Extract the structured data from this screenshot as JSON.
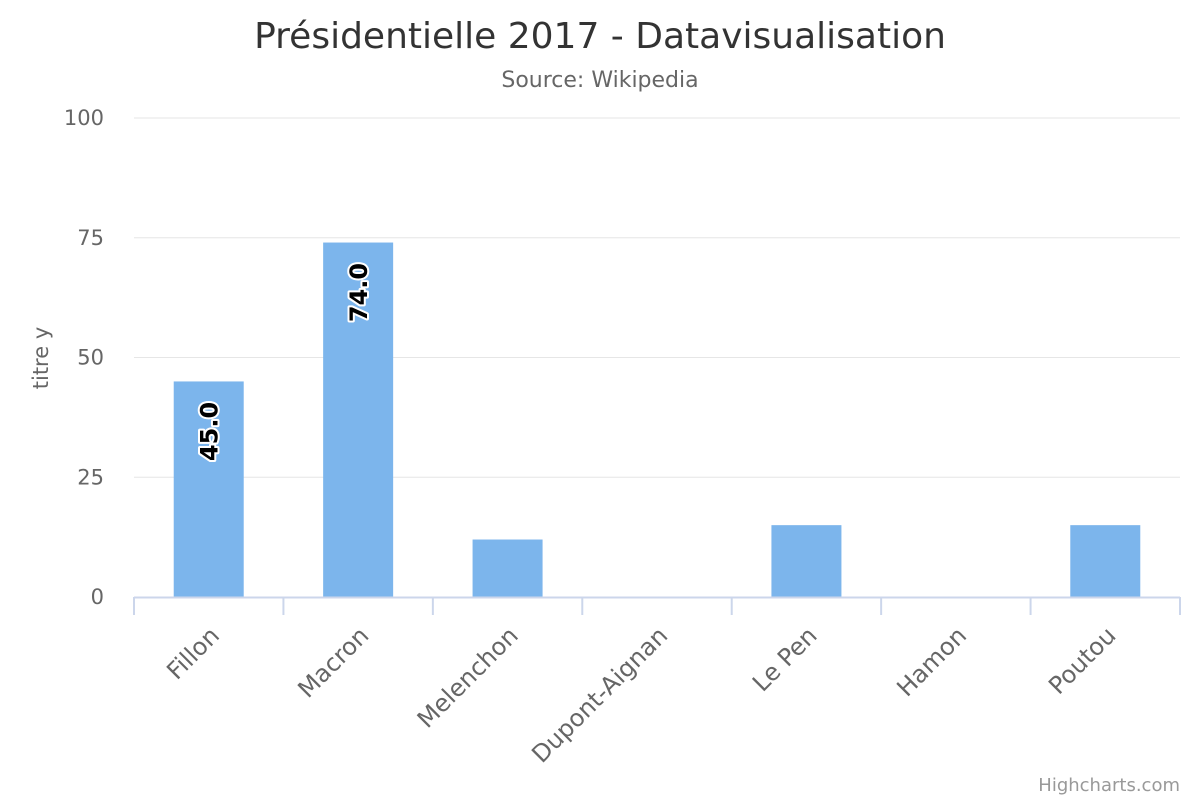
{
  "chart_data": {
    "type": "bar",
    "title": "Présidentielle 2017 - Datavisualisation",
    "subtitle": "Source: Wikipedia",
    "ylabel": "titre y",
    "xlabel": "",
    "categories": [
      "Fillon",
      "Macron",
      "Melenchon",
      "Dupont-Aignan",
      "Le Pen",
      "Hamon",
      "Poutou"
    ],
    "values": [
      45,
      74,
      12,
      0,
      15,
      0,
      15
    ],
    "data_labels": [
      "45.0",
      "74.0",
      "",
      "",
      "",
      "",
      ""
    ],
    "ylim": [
      0,
      100
    ],
    "yticks": [
      "0",
      "25",
      "50",
      "75",
      "100"
    ],
    "grid": true,
    "legend": "none",
    "bar_color": "#7cb5ec",
    "credits": "Highcharts.com"
  }
}
